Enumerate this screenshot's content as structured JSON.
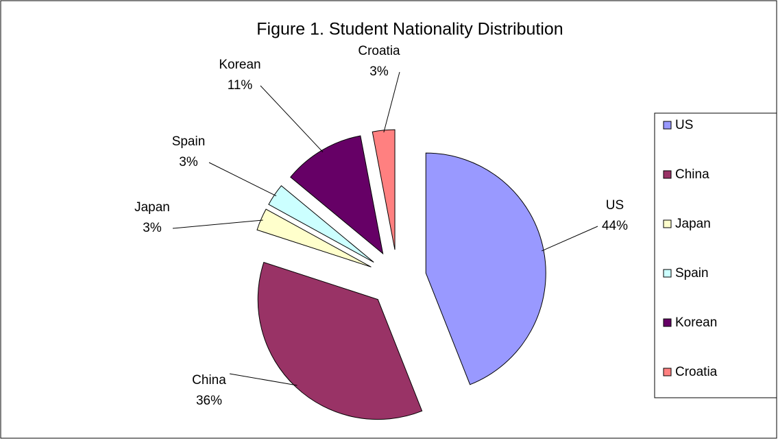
{
  "chart_data": {
    "type": "pie",
    "title": "Figure 1. Student Nationality Distribution",
    "categories": [
      "US",
      "China",
      "Japan",
      "Spain",
      "Korean",
      "Croatia"
    ],
    "values": [
      44,
      36,
      3,
      3,
      11,
      3
    ],
    "value_labels": [
      "44%",
      "36%",
      "3%",
      "3%",
      "11%",
      "3%"
    ],
    "colors": [
      "#9999ff",
      "#993366",
      "#ffffcc",
      "#ccffff",
      "#660066",
      "#ff8080"
    ],
    "legend": "right"
  }
}
